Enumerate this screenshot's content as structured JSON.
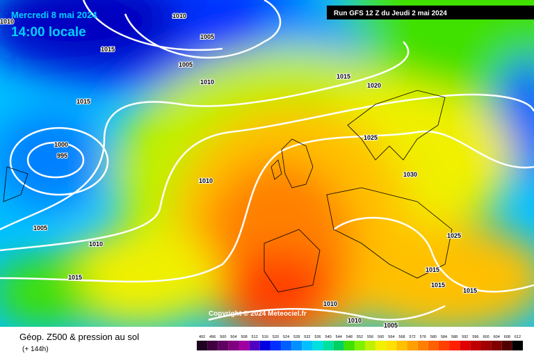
{
  "header": {
    "date": "Mercredi 8 mai 2024",
    "time": "14:00 locale",
    "run": "Run GFS 12 Z du Jeudi 2 mai 2024"
  },
  "copyright": "Copyright © 2024 Meteociel.fr",
  "footer": {
    "title": "Géop. Z500 & pression au sol",
    "subtitle": "(+ 144h)"
  },
  "isobar_labels": [
    "1010",
    "1010",
    "1005",
    "1015",
    "1005",
    "1010",
    "1015",
    "1020",
    "1015",
    "1000",
    "995",
    "1025",
    "1030",
    "1010",
    "1005",
    "1010",
    "1025",
    "1015",
    "1015",
    "1015",
    "1015",
    "1010",
    "1010",
    "1005"
  ],
  "colorbar": {
    "values": [
      492,
      496,
      500,
      504,
      508,
      512,
      516,
      520,
      524,
      528,
      532,
      536,
      540,
      544,
      548,
      552,
      556,
      560,
      564,
      568,
      572,
      576,
      580,
      584,
      588,
      592,
      596,
      600,
      604,
      608,
      612
    ],
    "colors": [
      "#200020",
      "#400040",
      "#600060",
      "#800080",
      "#a000a0",
      "#5000c0",
      "#0000e0",
      "#0030ff",
      "#0060ff",
      "#0090ff",
      "#00c0ff",
      "#00e0e0",
      "#00e0a0",
      "#00d060",
      "#40e000",
      "#80f000",
      "#c0f000",
      "#f0f000",
      "#ffe000",
      "#ffc000",
      "#ffa000",
      "#ff8000",
      "#ff6000",
      "#ff4000",
      "#ff2000",
      "#e00000",
      "#c00000",
      "#a00000",
      "#800000",
      "#500000",
      "#000000"
    ]
  }
}
